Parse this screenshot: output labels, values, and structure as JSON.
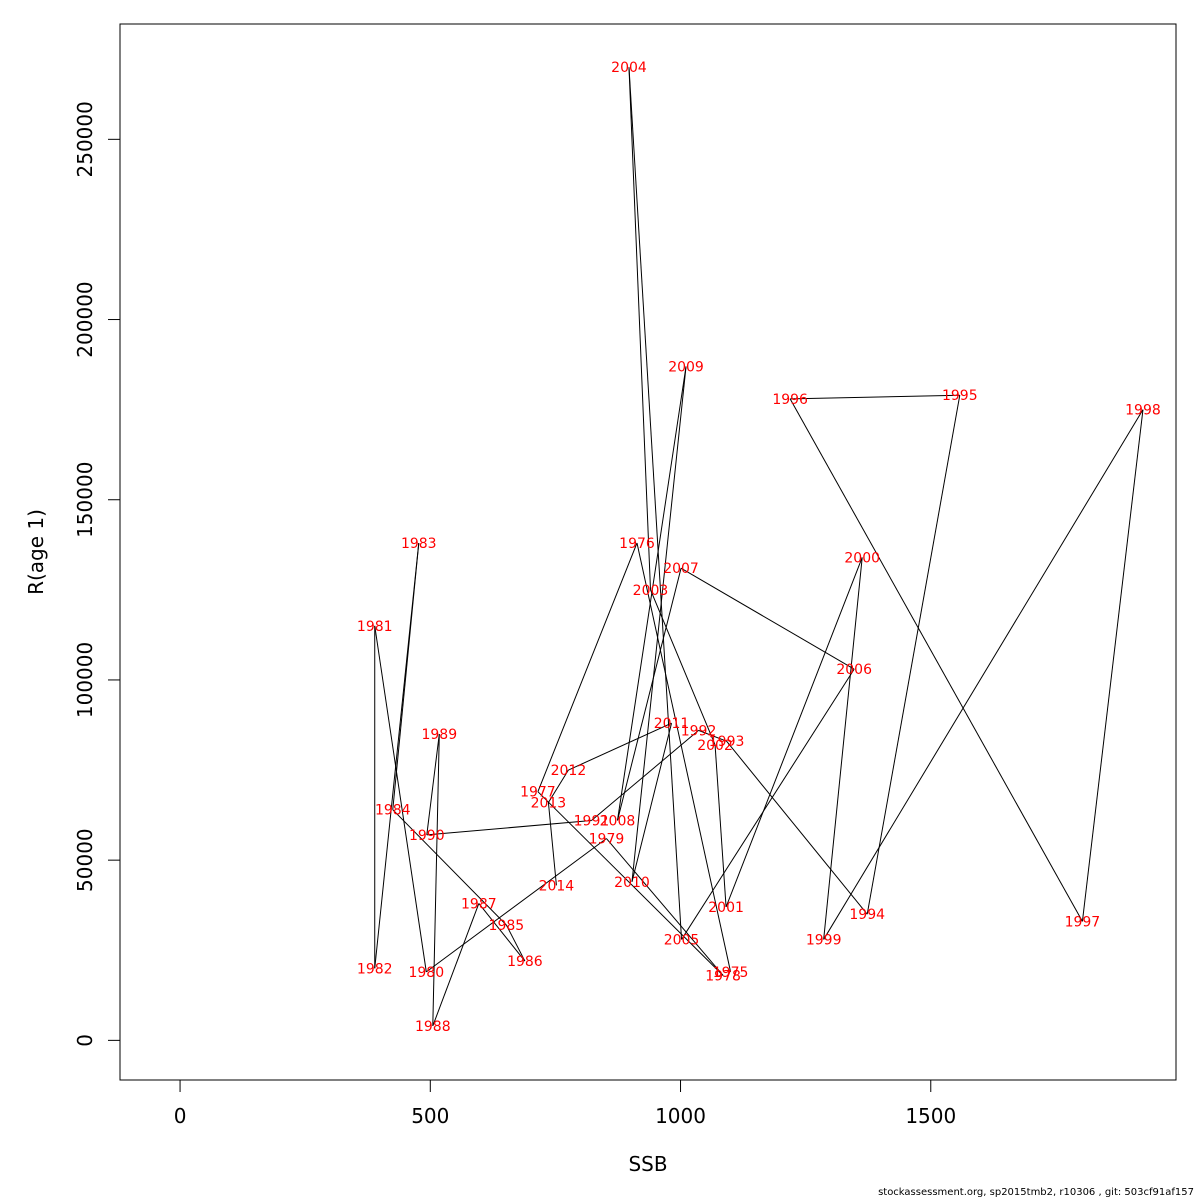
{
  "chart_data": {
    "type": "line",
    "title": "",
    "xlabel": "SSB",
    "ylabel": "R(age 1)",
    "xlim": [
      -120,
      1990
    ],
    "ylim": [
      -11000,
      282000
    ],
    "x_ticks": [
      0,
      500,
      1000,
      1500
    ],
    "y_ticks": [
      0,
      50000,
      100000,
      150000,
      200000,
      250000
    ],
    "grid": false,
    "line_color": "#000000",
    "label_color": "#ff0000",
    "points": [
      {
        "year": "1975",
        "x": 1100,
        "y": 19000
      },
      {
        "year": "1976",
        "x": 913,
        "y": 138000
      },
      {
        "year": "1977",
        "x": 715,
        "y": 69000
      },
      {
        "year": "1978",
        "x": 1085,
        "y": 18000
      },
      {
        "year": "1979",
        "x": 852,
        "y": 56000
      },
      {
        "year": "1980",
        "x": 492,
        "y": 19000
      },
      {
        "year": "1981",
        "x": 389,
        "y": 115000
      },
      {
        "year": "1982",
        "x": 389,
        "y": 20000
      },
      {
        "year": "1983",
        "x": 477,
        "y": 138000
      },
      {
        "year": "1984",
        "x": 425,
        "y": 64000
      },
      {
        "year": "1985",
        "x": 652,
        "y": 32000
      },
      {
        "year": "1986",
        "x": 689,
        "y": 22000
      },
      {
        "year": "1987",
        "x": 597,
        "y": 38000
      },
      {
        "year": "1988",
        "x": 505,
        "y": 4000
      },
      {
        "year": "1989",
        "x": 518,
        "y": 85000
      },
      {
        "year": "1990",
        "x": 493,
        "y": 57000
      },
      {
        "year": "1991",
        "x": 822,
        "y": 61000
      },
      {
        "year": "1992",
        "x": 1036,
        "y": 86000
      },
      {
        "year": "1993",
        "x": 1092,
        "y": 83000
      },
      {
        "year": "1994",
        "x": 1373,
        "y": 35000
      },
      {
        "year": "1995",
        "x": 1558,
        "y": 179000
      },
      {
        "year": "1996",
        "x": 1219,
        "y": 178000
      },
      {
        "year": "1997",
        "x": 1803,
        "y": 33000
      },
      {
        "year": "1998",
        "x": 1924,
        "y": 175000
      },
      {
        "year": "1999",
        "x": 1286,
        "y": 28000
      },
      {
        "year": "2000",
        "x": 1363,
        "y": 134000
      },
      {
        "year": "2001",
        "x": 1091,
        "y": 37000
      },
      {
        "year": "2002",
        "x": 1069,
        "y": 82000
      },
      {
        "year": "2003",
        "x": 940,
        "y": 125000
      },
      {
        "year": "2004",
        "x": 897,
        "y": 270000
      },
      {
        "year": "2005",
        "x": 1002,
        "y": 28000
      },
      {
        "year": "2006",
        "x": 1347,
        "y": 103000
      },
      {
        "year": "2007",
        "x": 1001,
        "y": 131000
      },
      {
        "year": "2008",
        "x": 874,
        "y": 61000
      },
      {
        "year": "2009",
        "x": 1011,
        "y": 187000
      },
      {
        "year": "2010",
        "x": 903,
        "y": 44000
      },
      {
        "year": "2011",
        "x": 982,
        "y": 88000
      },
      {
        "year": "2012",
        "x": 776,
        "y": 75000
      },
      {
        "year": "2013",
        "x": 736,
        "y": 66000
      },
      {
        "year": "2014",
        "x": 752,
        "y": 43000
      }
    ]
  },
  "footer": "stockassessment.org, sp2015tmb2, r10306 , git: 503cf91af157"
}
